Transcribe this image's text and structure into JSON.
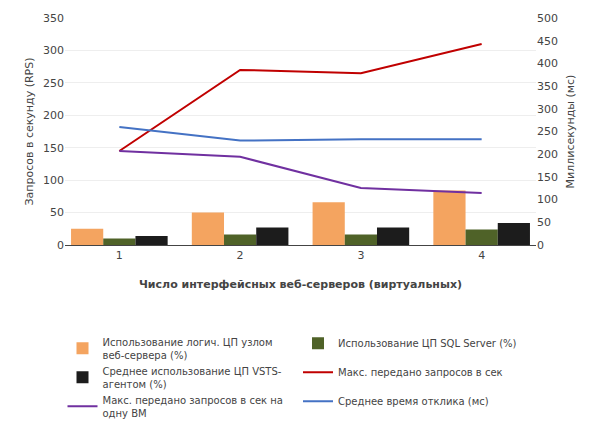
{
  "chart_data": {
    "type": "bar",
    "x": [
      1,
      2,
      3,
      4
    ],
    "xlim": [
      0.55,
      4.45
    ],
    "xticks": [
      1,
      2,
      3,
      4
    ],
    "xlabel": "Число интерфейсных веб-серверов (виртуальных)",
    "ylabel": "Запросов в секунду (RPS)",
    "y2label": "Миллисекунды (мс)",
    "ylim": [
      0,
      350
    ],
    "yticks": [
      0,
      50,
      100,
      150,
      200,
      250,
      300,
      350
    ],
    "y2lim": [
      0,
      500
    ],
    "y2ticks": [
      0,
      50,
      100,
      150,
      200,
      250,
      300,
      350,
      400,
      450,
      500
    ],
    "grid": true,
    "legend": "bottom",
    "series": [
      {
        "name": "Использование логич. ЦП узлом\nвеб-сервера (%)",
        "type": "bar",
        "color": "#F4A460",
        "values": [
          25,
          50,
          66,
          84
        ]
      },
      {
        "name": "Использование ЦП SQL Server (%)",
        "type": "bar",
        "color": "#4F6228",
        "values": [
          10,
          16,
          16,
          24
        ]
      },
      {
        "name": "Среднее использование ЦП VSTS-\nагентом (%)",
        "type": "bar",
        "color": "#1C1C1C",
        "values": [
          14,
          27,
          27,
          34
        ]
      },
      {
        "name": "Макс. передано запросов в сек",
        "type": "line",
        "color": "#C00000",
        "values": [
          145,
          270,
          265,
          310
        ]
      },
      {
        "name": "Макс. передано запросов в сек на\nодну ВМ",
        "type": "line",
        "color": "#7030A0",
        "values": [
          145,
          136,
          88,
          80
        ]
      },
      {
        "name": "Среднее время отклика (мс)",
        "type": "line",
        "color": "#4472C4",
        "axis": "y2",
        "values": [
          260,
          230,
          233,
          233
        ]
      }
    ]
  }
}
